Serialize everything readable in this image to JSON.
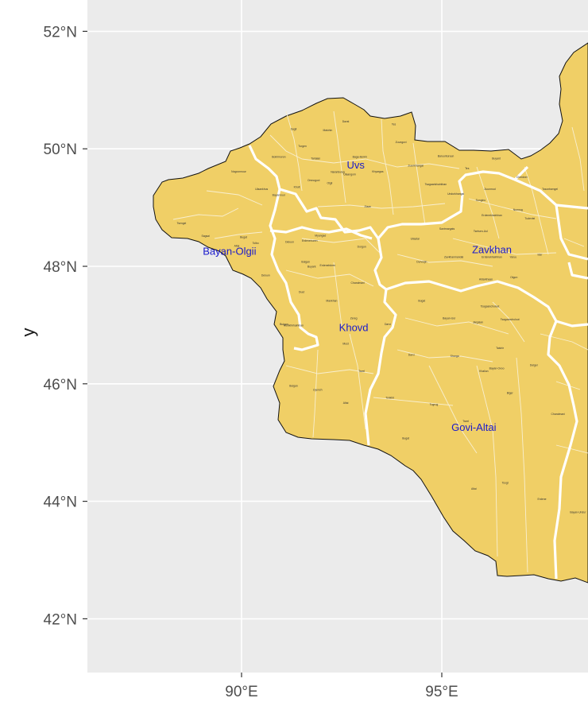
{
  "colors": {
    "panel_bg": "#ebebeb",
    "gridline": "#ffffff",
    "land_fill": "#f0cf66",
    "province_border": "#ffffff",
    "district_border": "#f8efd0",
    "outline": "#111111",
    "province_label": "#1a1acc",
    "tick_text": "#4d4d4d"
  },
  "axes": {
    "y_title": "y",
    "lat_ticks": [
      {
        "value": 52,
        "label": "52°N"
      },
      {
        "value": 50,
        "label": "50°N"
      },
      {
        "value": 48,
        "label": "48°N"
      },
      {
        "value": 46,
        "label": "46°N"
      },
      {
        "value": 44,
        "label": "44°N"
      },
      {
        "value": 42,
        "label": "42°N"
      }
    ],
    "lon_ticks": [
      {
        "value": 90,
        "label": "90°E"
      },
      {
        "value": 95,
        "label": "95°E"
      }
    ]
  },
  "provinces": [
    {
      "name": "Uvs",
      "lon": 92.85,
      "lat": 49.72
    },
    {
      "name": "Bayan-Olgii",
      "lon": 89.7,
      "lat": 48.25
    },
    {
      "name": "Zavkhan",
      "lon": 96.25,
      "lat": 48.28
    },
    {
      "name": "Khovd",
      "lon": 92.8,
      "lat": 46.95
    },
    {
      "name": "Govi-Altai",
      "lon": 95.8,
      "lat": 45.25
    }
  ],
  "districts": [
    {
      "name": "Davst",
      "lon": 92.6,
      "lat": 50.45
    },
    {
      "name": "Tes",
      "lon": 93.8,
      "lat": 50.4
    },
    {
      "name": "Sagil",
      "lon": 91.3,
      "lat": 50.32
    },
    {
      "name": "Malchin",
      "lon": 92.15,
      "lat": 50.3
    },
    {
      "name": "Zuungovi",
      "lon": 93.98,
      "lat": 50.1
    },
    {
      "name": "Turgen",
      "lon": 91.52,
      "lat": 50.03
    },
    {
      "name": "Bokhmoron",
      "lon": 90.93,
      "lat": 49.85
    },
    {
      "name": "Tarialan",
      "lon": 91.85,
      "lat": 49.82
    },
    {
      "name": "Baruunturuun",
      "lon": 95.1,
      "lat": 49.86
    },
    {
      "name": "Baga-Ilenkh",
      "lon": 92.95,
      "lat": 49.85
    },
    {
      "name": "Tes",
      "lon": 95.63,
      "lat": 49.65
    },
    {
      "name": "Buyant",
      "lon": 96.36,
      "lat": 49.82
    },
    {
      "name": "Naranbulag",
      "lon": 92.4,
      "lat": 49.59
    },
    {
      "name": "Nogoonnuur",
      "lon": 89.93,
      "lat": 49.6
    },
    {
      "name": "Ulaangom",
      "lon": 92.7,
      "lat": 49.55
    },
    {
      "name": "Khyargas",
      "lon": 93.4,
      "lat": 49.6
    },
    {
      "name": "Zuunkhangai",
      "lon": 94.35,
      "lat": 49.7
    },
    {
      "name": "Tsagaankhairkhan",
      "lon": 94.85,
      "lat": 49.38
    },
    {
      "name": "Zuunmod",
      "lon": 96.2,
      "lat": 49.3
    },
    {
      "name": "Cherdnei",
      "lon": 97.0,
      "lat": 49.5
    },
    {
      "name": "Undurkhangai",
      "lon": 95.35,
      "lat": 49.22
    },
    {
      "name": "Kholt",
      "lon": 91.38,
      "lat": 49.33
    },
    {
      "name": "Omnogovi",
      "lon": 91.8,
      "lat": 49.45
    },
    {
      "name": "Olgii",
      "lon": 92.2,
      "lat": 49.4
    },
    {
      "name": "Ulaankhus",
      "lon": 90.5,
      "lat": 49.3
    },
    {
      "name": "Tsengel",
      "lon": 88.5,
      "lat": 48.72
    },
    {
      "name": "Sagsai",
      "lon": 89.1,
      "lat": 48.5
    },
    {
      "name": "Bugat",
      "lon": 90.05,
      "lat": 48.48
    },
    {
      "name": "Altai",
      "lon": 89.88,
      "lat": 48.33
    },
    {
      "name": "Tolbo",
      "lon": 90.35,
      "lat": 48.38
    },
    {
      "name": "Bayannuur",
      "lon": 90.93,
      "lat": 49.2
    },
    {
      "name": "Ziaan",
      "lon": 93.15,
      "lat": 49.0
    },
    {
      "name": "Songino",
      "lon": 95.97,
      "lat": 49.11
    },
    {
      "name": "Erdenekhairkhan",
      "lon": 96.25,
      "lat": 48.85
    },
    {
      "name": "Numrug",
      "lon": 96.9,
      "lat": 48.95
    },
    {
      "name": "Tosontsengel",
      "lon": 97.7,
      "lat": 49.3
    },
    {
      "name": "Tudevtei",
      "lon": 97.2,
      "lat": 48.8
    },
    {
      "name": "Deluun",
      "lon": 91.2,
      "lat": 48.4
    },
    {
      "name": "Bulgan",
      "lon": 91.6,
      "lat": 48.06
    },
    {
      "name": "Erdeneburen",
      "lon": 91.7,
      "lat": 48.42
    },
    {
      "name": "Myangad",
      "lon": 91.97,
      "lat": 48.51
    },
    {
      "name": "Dorgon",
      "lon": 93.0,
      "lat": 48.32
    },
    {
      "name": "Uliastai",
      "lon": 94.33,
      "lat": 48.45
    },
    {
      "name": "Santmargats",
      "lon": 95.13,
      "lat": 48.62
    },
    {
      "name": "Tsetsen-Uul",
      "lon": 95.97,
      "lat": 48.58
    },
    {
      "name": "Erdenekhairkhan",
      "lon": 96.25,
      "lat": 48.14
    },
    {
      "name": "Yaruu",
      "lon": 96.78,
      "lat": 48.14
    },
    {
      "name": "Ider",
      "lon": 97.45,
      "lat": 48.18
    },
    {
      "name": "Zavkhanmandal",
      "lon": 95.3,
      "lat": 48.14
    },
    {
      "name": "Buyant",
      "lon": 91.75,
      "lat": 47.98
    },
    {
      "name": "Erdenebüren",
      "lon": 92.15,
      "lat": 48.0
    },
    {
      "name": "Durvuljin",
      "lon": 94.5,
      "lat": 48.06
    },
    {
      "name": "Chandmani",
      "lon": 92.9,
      "lat": 47.7
    },
    {
      "name": "Aldarkhaan",
      "lon": 96.1,
      "lat": 47.76
    },
    {
      "name": "Otgon",
      "lon": 96.8,
      "lat": 47.8
    },
    {
      "name": "Deluun",
      "lon": 90.6,
      "lat": 47.83
    },
    {
      "name": "Duut",
      "lon": 91.5,
      "lat": 47.55
    },
    {
      "name": "Mankhan",
      "lon": 92.25,
      "lat": 47.4
    },
    {
      "name": "Tsagaanchuluut",
      "lon": 96.2,
      "lat": 47.3
    },
    {
      "name": "Bugat",
      "lon": 94.5,
      "lat": 47.4
    },
    {
      "name": "Bayan-Uul",
      "lon": 95.18,
      "lat": 47.1
    },
    {
      "name": "Jargalan",
      "lon": 95.9,
      "lat": 47.03
    },
    {
      "name": "Tsagaanchuluut",
      "lon": 96.7,
      "lat": 47.08
    },
    {
      "name": "Bulgan",
      "lon": 91.06,
      "lat": 47.0
    },
    {
      "name": "Munkhkhairkhan",
      "lon": 91.3,
      "lat": 46.98
    },
    {
      "name": "Zereg",
      "lon": 92.8,
      "lat": 47.1
    },
    {
      "name": "Darvi",
      "lon": 93.65,
      "lat": 47.0
    },
    {
      "name": "Most",
      "lon": 92.6,
      "lat": 46.67
    },
    {
      "name": "Darvi",
      "lon": 94.24,
      "lat": 46.48
    },
    {
      "name": "Sharga",
      "lon": 95.32,
      "lat": 46.46
    },
    {
      "name": "Taishir",
      "lon": 96.45,
      "lat": 46.59
    },
    {
      "name": "Khaliun",
      "lon": 96.05,
      "lat": 46.2
    },
    {
      "name": "Delger",
      "lon": 97.3,
      "lat": 46.3
    },
    {
      "name": "Tseel",
      "lon": 93.0,
      "lat": 46.2
    },
    {
      "name": "Uyench",
      "lon": 91.9,
      "lat": 45.88
    },
    {
      "name": "Bulgan",
      "lon": 91.3,
      "lat": 45.95
    },
    {
      "name": "Altai",
      "lon": 92.6,
      "lat": 45.66
    },
    {
      "name": "Tonkhil",
      "lon": 93.7,
      "lat": 45.75
    },
    {
      "name": "Tugrug",
      "lon": 94.8,
      "lat": 45.63
    },
    {
      "name": "Biger",
      "lon": 96.7,
      "lat": 45.83
    },
    {
      "name": "Chandmani",
      "lon": 97.9,
      "lat": 45.47
    },
    {
      "name": "Tseel",
      "lon": 95.6,
      "lat": 45.35
    },
    {
      "name": "Bugat",
      "lon": 94.1,
      "lat": 45.06
    },
    {
      "name": "Altai",
      "lon": 95.8,
      "lat": 44.2
    },
    {
      "name": "Erdene",
      "lon": 97.5,
      "lat": 44.02
    },
    {
      "name": "Bayan-Ovoo",
      "lon": 96.37,
      "lat": 46.25
    },
    {
      "name": "Tsogt",
      "lon": 96.58,
      "lat": 44.3
    },
    {
      "name": "Bayan-Undur",
      "lon": 98.4,
      "lat": 43.8
    }
  ]
}
